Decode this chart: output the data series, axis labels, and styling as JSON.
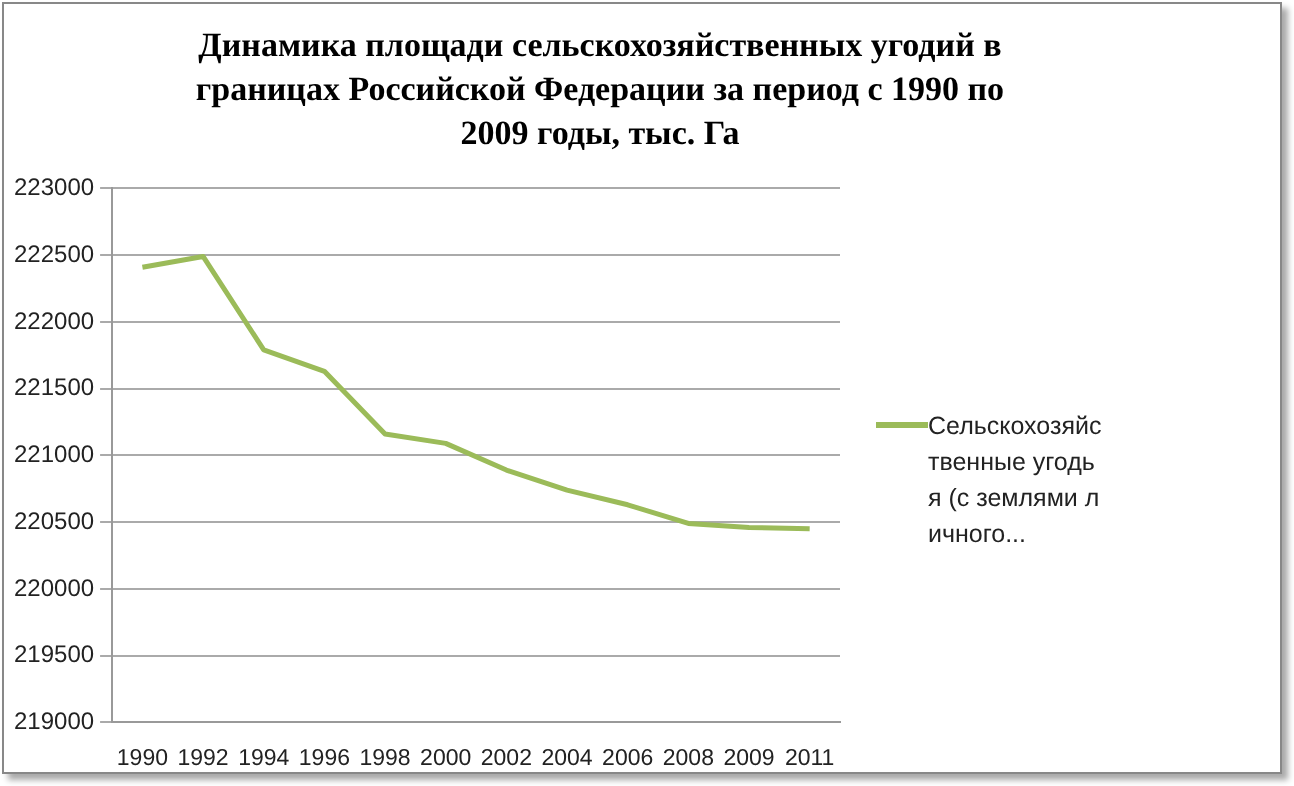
{
  "chart_data": {
    "type": "line",
    "title": "Динамика площади сельскохозяйственных угодий в границах Российской Федерации за период с 1990 по 2009 годы, тыс. Га",
    "categories": [
      "1990",
      "1992",
      "1994",
      "1996",
      "1998",
      "2000",
      "2002",
      "2004",
      "2006",
      "2008",
      "2009",
      "2011"
    ],
    "series": [
      {
        "name": "Сельскохозяйственные угодья (с землями личного...",
        "color": "#9bbb59",
        "values": [
          222410,
          222490,
          221790,
          221630,
          221160,
          221090,
          220890,
          220740,
          220630,
          220490,
          220460,
          220450
        ]
      }
    ],
    "ylim": [
      219000,
      223000
    ],
    "yticks": [
      219000,
      219500,
      220000,
      220500,
      221000,
      221500,
      222000,
      222500,
      223000
    ],
    "grid": "y",
    "legend": "right",
    "marker": "none"
  }
}
